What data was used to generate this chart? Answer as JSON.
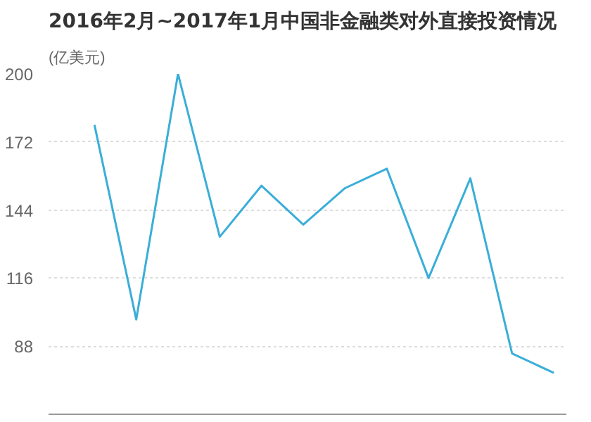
{
  "chart_data": {
    "type": "line",
    "title": "2016年2月~2017年1月中国非金融类对外直接投资情况",
    "ylabel": "(亿美元)",
    "categories": [
      null,
      null,
      null,
      null,
      null,
      null,
      null,
      null,
      null,
      null,
      null,
      null
    ],
    "series": [
      {
        "color": "#3aaed8",
        "values": [
          179,
          99,
          200,
          133,
          154,
          138,
          153,
          161,
          116,
          157,
          85,
          77
        ]
      }
    ],
    "ylim": [
      60,
      200
    ],
    "yticks": [
      88,
      116,
      144,
      172,
      200
    ],
    "grid": "y",
    "tick_labels": "y",
    "marker": "none",
    "line_style": "solid"
  }
}
